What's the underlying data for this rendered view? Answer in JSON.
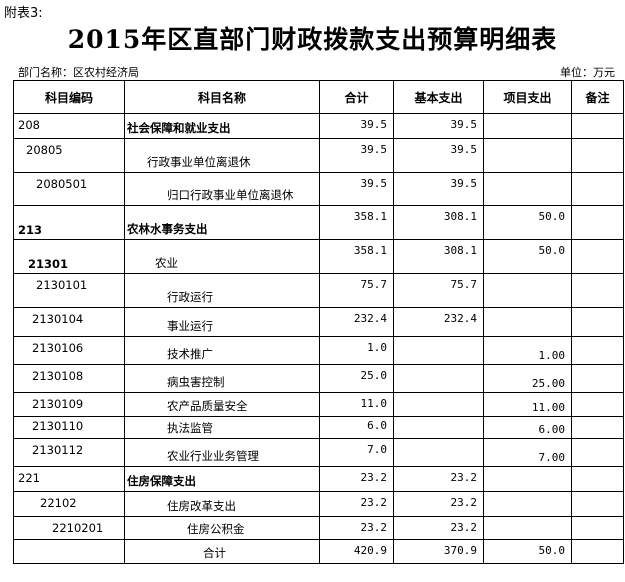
{
  "attach_label": "附表3:",
  "title": "2015年区直部门财政拨款支出预算明细表",
  "department": "部门名称：区农村经济局",
  "unit": "单位：万元",
  "headers": [
    "科目编码",
    "科目名称",
    "合计",
    "基本支出",
    "项目支出",
    "备注"
  ],
  "rows": [
    {
      "code": "208",
      "name": "社会保障和就业支出",
      "total": "39.5",
      "basic": "39.5",
      "project": "",
      "note": ""
    },
    {
      "code": "20805",
      "name": "行政事业单位离退休",
      "total": "39.5",
      "basic": "39.5",
      "project": "",
      "note": ""
    },
    {
      "code": "2080501",
      "name": "归口行政事业单位离退休",
      "total": "39.5",
      "basic": "39.5",
      "project": "",
      "note": ""
    },
    {
      "code": "213",
      "name": "农林水事务支出",
      "total": "358.1",
      "basic": "308.1",
      "project": "50.0",
      "note": ""
    },
    {
      "code": "21301",
      "name": "农业",
      "total": "358.1",
      "basic": "308.1",
      "project": "50.0",
      "note": ""
    },
    {
      "code": "2130101",
      "name": "行政运行",
      "total": "75.7",
      "basic": "75.7",
      "project": "",
      "note": ""
    },
    {
      "code": "2130104",
      "name": "事业运行",
      "total": "232.4",
      "basic": "232.4",
      "project": "",
      "note": ""
    },
    {
      "code": "2130106",
      "name": "技术推广",
      "total": "1.0",
      "basic": "",
      "project": "1.00",
      "note": ""
    },
    {
      "code": "2130108",
      "name": "病虫害控制",
      "total": "25.0",
      "basic": "",
      "project": "25.00",
      "note": ""
    },
    {
      "code": "2130109",
      "name": "农产品质量安全",
      "total": "11.0",
      "basic": "",
      "project": "11.00",
      "note": ""
    },
    {
      "code": "2130110",
      "name": "执法监管",
      "total": "6.0",
      "basic": "",
      "project": "6.00",
      "note": ""
    },
    {
      "code": "2130112",
      "name": "农业行业业务管理",
      "total": "7.0",
      "basic": "",
      "project": "7.00",
      "note": ""
    },
    {
      "code": "221",
      "name": "住房保障支出",
      "total": "23.2",
      "basic": "23.2",
      "project": "",
      "note": ""
    },
    {
      "code": "22102",
      "name": "住房改革支出",
      "total": "23.2",
      "basic": "23.2",
      "project": "",
      "note": ""
    },
    {
      "code": "2210201",
      "name": "住房公积金",
      "total": "23.2",
      "basic": "23.2",
      "project": "",
      "note": ""
    },
    {
      "code": "",
      "name": "合计",
      "total": "420.9",
      "basic": "370.9",
      "project": "50.0",
      "note": ""
    }
  ]
}
